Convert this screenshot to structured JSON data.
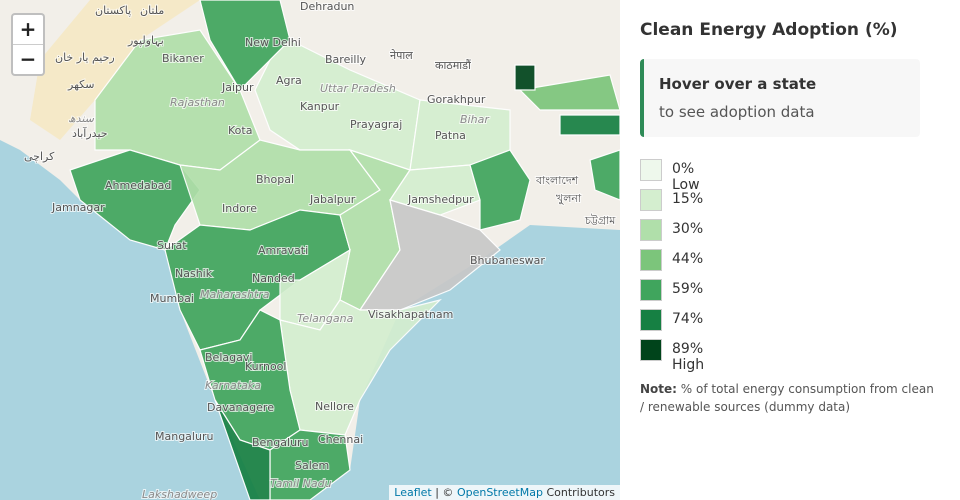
{
  "controls": {
    "zoom_in": "+",
    "zoom_out": "−"
  },
  "map": {
    "labels": [
      "Dehradun",
      "New Delhi",
      "Bikaner",
      "Jaipur",
      "Bareilly",
      "Agra",
      "Rajasthan",
      "Uttar Pradesh",
      "Kanpur",
      "Gorakhpur",
      "Kota",
      "Prayagraj",
      "Patna",
      "Bihar",
      "Ahmedabad",
      "Bhopal",
      "Jabalpur",
      "Jamshedpur",
      "Indore",
      "Jamnagar",
      "Surat",
      "Amravati",
      "Nashik",
      "Nanded",
      "Mumbai",
      "Maharashtra",
      "Bhubaneswar",
      "Telangana",
      "Visakhapatnam",
      "Belagavi",
      "Kurnool",
      "Karnataka",
      "Davanagere",
      "Nellore",
      "Mangaluru",
      "Bengaluru",
      "Chennai",
      "Salem",
      "Tamil Nadu",
      "Lakshadweep",
      "پاکستان",
      "ملتان",
      "بہاولپور",
      "رحیم یار خان",
      "سکھر",
      "حیدرآباد",
      "کراچی",
      "سندھ",
      "नेपाल",
      "काठमाडौं",
      "বাংলাদেশ",
      "খুলনা",
      "চট্টগ্রাম"
    ]
  },
  "attribution": {
    "leaflet": "Leaflet",
    "separator": "| ©",
    "osm": "OpenStreetMap",
    "contributors": "Contributors"
  },
  "panel": {
    "title": "Clean Energy Adoption (%)",
    "info_title": "Hover over a state",
    "info_text": "to see adoption data",
    "legend": [
      {
        "label": "0% Low",
        "color": "#eef8ec"
      },
      {
        "label": "15%",
        "color": "#d4eecf"
      },
      {
        "label": "30%",
        "color": "#b0dfaa"
      },
      {
        "label": "44%",
        "color": "#7cc57b"
      },
      {
        "label": "59%",
        "color": "#40a55d"
      },
      {
        "label": "74%",
        "color": "#168043"
      },
      {
        "label": "89% High",
        "color": "#00441b"
      }
    ],
    "note_label": "Note:",
    "note_text": "% of total energy consumption from clean / renewable sources (dummy data)"
  }
}
